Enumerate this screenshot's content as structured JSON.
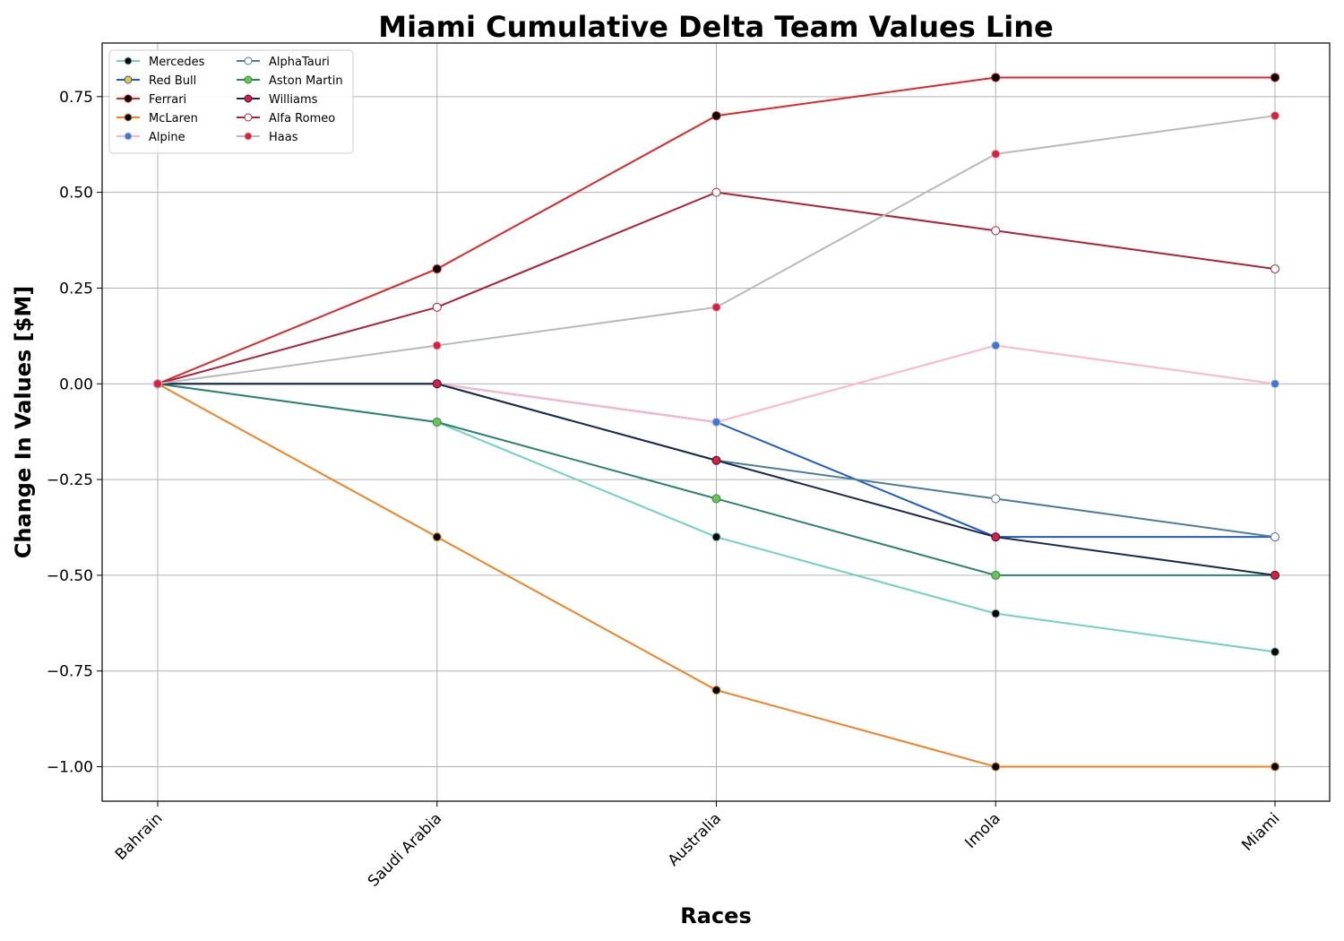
{
  "chart_data": {
    "type": "line",
    "title": "Miami Cumulative Delta Team Values Line",
    "xlabel": "Races",
    "ylabel": "Change In Values [$M]",
    "categories": [
      "Bahrain",
      "Saudi Arabia",
      "Australia",
      "Imola",
      "Miami"
    ],
    "ylim": [
      -1.09,
      0.89
    ],
    "yticks": [
      -1.0,
      -0.75,
      -0.5,
      -0.25,
      0.0,
      0.25,
      0.5,
      0.75
    ],
    "ytick_labels": [
      "−1.00",
      "−0.75",
      "−0.50",
      "−0.25",
      "0.00",
      "0.25",
      "0.50",
      "0.75"
    ],
    "grid": true,
    "legend_position": "top-left",
    "series": [
      {
        "name": "Mercedes",
        "values": [
          0,
          -0.1,
          -0.4,
          -0.6,
          -0.7
        ],
        "line_color": "#6fd3bd",
        "marker_face": "#000000",
        "marker_edge": "#6fd3bd"
      },
      {
        "name": "Red Bull",
        "values": [
          0,
          0,
          -0.1,
          -0.4,
          -0.4
        ],
        "line_color": "#1e5bc6",
        "marker_face": "#f7c42b",
        "marker_edge": "#1e5bc6"
      },
      {
        "name": "Ferrari",
        "values": [
          0,
          0.3,
          0.7,
          0.8,
          0.8
        ],
        "line_color": "#e0252b",
        "marker_face": "#000000",
        "marker_edge": "#c00000"
      },
      {
        "name": "McLaren",
        "values": [
          0,
          -0.4,
          -0.8,
          -1.0,
          -1.0
        ],
        "line_color": "#f58020",
        "marker_face": "#000000",
        "marker_edge": "#f58020"
      },
      {
        "name": "Alpine",
        "values": [
          0,
          0,
          -0.1,
          0.1,
          0
        ],
        "line_color": "#ffb6c8",
        "marker_face": "#2d7fd6",
        "marker_edge": "#ffb6c8"
      },
      {
        "name": "AlphaTauri",
        "values": [
          0,
          0,
          -0.2,
          -0.3,
          -0.4
        ],
        "line_color": "#4e7c9c",
        "marker_face": "#ffffff",
        "marker_edge": "#4e7c9c"
      },
      {
        "name": "Aston Martin",
        "values": [
          0,
          -0.1,
          -0.3,
          -0.5,
          -0.5
        ],
        "line_color": "#2d826d",
        "marker_face": "#6cc644",
        "marker_edge": "#2d826d"
      },
      {
        "name": "Williams",
        "values": [
          0,
          0,
          -0.2,
          -0.4,
          -0.5
        ],
        "line_color": "#1b2a4e",
        "marker_face": "#e8173e",
        "marker_edge": "#1b2a4e"
      },
      {
        "name": "Alfa Romeo",
        "values": [
          0,
          0.2,
          0.5,
          0.4,
          0.3
        ],
        "line_color": "#b12039",
        "marker_face": "#ffffff",
        "marker_edge": "#b12039"
      },
      {
        "name": "Haas",
        "values": [
          0,
          0.1,
          0.2,
          0.6,
          0.7
        ],
        "line_color": "#b6babd",
        "marker_face": "#e8173e",
        "marker_edge": "#b6babd"
      }
    ]
  }
}
